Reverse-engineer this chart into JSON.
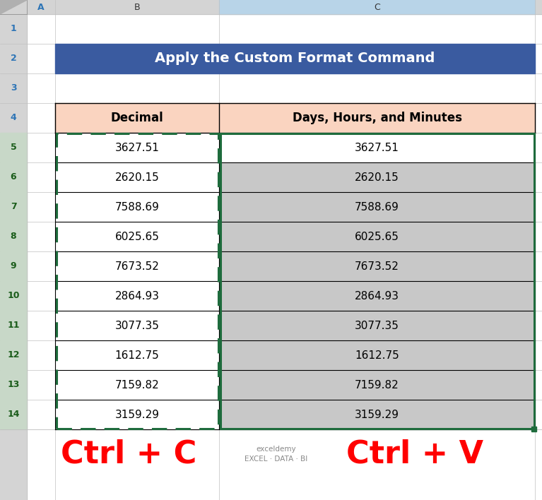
{
  "title": "Apply the Custom Format Command",
  "title_bg": "#3A5BA0",
  "title_text_color": "#FFFFFF",
  "col_headers": [
    "Decimal",
    "Days, Hours, and Minutes"
  ],
  "col_header_bg": "#FAD4C0",
  "data_values": [
    [
      "3627.51",
      "3627.51"
    ],
    [
      "2620.15",
      "2620.15"
    ],
    [
      "7588.69",
      "7588.69"
    ],
    [
      "6025.65",
      "6025.65"
    ],
    [
      "7673.52",
      "7673.52"
    ],
    [
      "2864.93",
      "2864.93"
    ],
    [
      "3077.35",
      "3077.35"
    ],
    [
      "1612.75",
      "1612.75"
    ],
    [
      "7159.82",
      "7159.82"
    ],
    [
      "3159.29",
      "3159.29"
    ]
  ],
  "row_colors_col1": [
    "#FFFFFF",
    "#FFFFFF",
    "#FFFFFF",
    "#FFFFFF",
    "#FFFFFF",
    "#FFFFFF",
    "#FFFFFF",
    "#FFFFFF",
    "#FFFFFF",
    "#FFFFFF"
  ],
  "row_colors_col2": [
    "#FFFFFF",
    "#C8C8C8",
    "#C8C8C8",
    "#C8C8C8",
    "#C8C8C8",
    "#C8C8C8",
    "#C8C8C8",
    "#C8C8C8",
    "#C8C8C8",
    "#C8C8C8"
  ],
  "dashed_border_color": "#1E6B3C",
  "ctrl_c_text": "Ctrl + C",
  "ctrl_v_text": "Ctrl + V",
  "ctrl_color": "#FF0000",
  "ctrl_fontsize": 32,
  "col_labels": [
    "A",
    "B",
    "C"
  ],
  "bg_color": "#FFFFFF",
  "excel_header_bg": "#D4D4D4",
  "row_num_color": "#2E75B6",
  "col_label_color": "#2E75B6",
  "grid_line_color": "#C0C0C0",
  "cell_border_color": "#000000",
  "logo_text": "exceldemy\nEXCEL · DATA · BI"
}
